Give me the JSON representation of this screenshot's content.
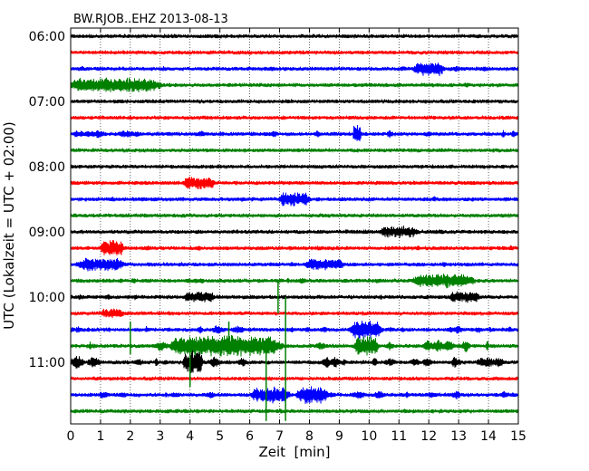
{
  "chart_data": {
    "type": "line",
    "title": "BW.RJOB..EHZ 2013-08-13",
    "xlabel": "Zeit  [min]",
    "ylabel": "UTC (Lokalzeit = UTC + 02:00)",
    "xlim": [
      0,
      15
    ],
    "x_ticks": [
      "0",
      "1",
      "2",
      "3",
      "4",
      "5",
      "6",
      "7",
      "8",
      "9",
      "10",
      "11",
      "12",
      "13",
      "14",
      "15"
    ],
    "y_ticks": [
      "06:00",
      "07:00",
      "08:00",
      "09:00",
      "10:00",
      "11:00"
    ],
    "grid": "vertical dotted",
    "trace_interval_minutes": 15,
    "start_time": "06:00",
    "trace_colors": [
      "#000000",
      "#ff0000",
      "#0000ff",
      "#008000"
    ],
    "traces": [
      {
        "start": "06:00",
        "color": "#000000",
        "max_amplitude": 2.0
      },
      {
        "start": "06:15",
        "color": "#ff0000",
        "max_amplitude": 1.8
      },
      {
        "start": "06:30",
        "color": "#0000ff",
        "max_amplitude": 3.5
      },
      {
        "start": "06:45",
        "color": "#008000",
        "max_amplitude": 3.0
      },
      {
        "start": "07:00",
        "color": "#000000",
        "max_amplitude": 2.5
      },
      {
        "start": "07:15",
        "color": "#ff0000",
        "max_amplitude": 2.0
      },
      {
        "start": "07:30",
        "color": "#0000ff",
        "max_amplitude": 5.0
      },
      {
        "start": "07:45",
        "color": "#008000",
        "max_amplitude": 1.5
      },
      {
        "start": "08:00",
        "color": "#000000",
        "max_amplitude": 2.5
      },
      {
        "start": "08:15",
        "color": "#ff0000",
        "max_amplitude": 3.0
      },
      {
        "start": "08:30",
        "color": "#0000ff",
        "max_amplitude": 3.5
      },
      {
        "start": "08:45",
        "color": "#008000",
        "max_amplitude": 2.0
      },
      {
        "start": "09:00",
        "color": "#000000",
        "max_amplitude": 3.0
      },
      {
        "start": "09:15",
        "color": "#ff0000",
        "max_amplitude": 3.5
      },
      {
        "start": "09:30",
        "color": "#0000ff",
        "max_amplitude": 3.0
      },
      {
        "start": "09:45",
        "color": "#008000",
        "max_amplitude": 4.0
      },
      {
        "start": "10:00",
        "color": "#000000",
        "max_amplitude": 3.5
      },
      {
        "start": "10:15",
        "color": "#ff0000",
        "max_amplitude": 2.5
      },
      {
        "start": "10:30",
        "color": "#0000ff",
        "max_amplitude": 5.0
      },
      {
        "start": "10:45",
        "color": "#008000",
        "max_amplitude": 8.0
      },
      {
        "start": "11:00",
        "color": "#000000",
        "max_amplitude": 8.0
      },
      {
        "start": "11:15",
        "color": "#ff0000",
        "max_amplitude": 2.0
      },
      {
        "start": "11:30",
        "color": "#0000ff",
        "max_amplitude": 5.0
      },
      {
        "start": "11:45",
        "color": "#008000",
        "max_amplitude": 3.0
      }
    ],
    "events": [
      {
        "trace": 20,
        "minute": 4.1,
        "amplitude": 1.0,
        "width": 0.25
      },
      {
        "trace": 19,
        "minute": 5.5,
        "amplitude": 0.9,
        "width": 1.2
      },
      {
        "trace": 19,
        "minute": 4.0,
        "amplitude": 0.8,
        "width": 0.5
      },
      {
        "trace": 19,
        "minute": 9.9,
        "amplitude": 0.9,
        "width": 0.3
      },
      {
        "trace": 18,
        "minute": 9.9,
        "amplitude": 0.8,
        "width": 0.4
      },
      {
        "trace": 22,
        "minute": 8.1,
        "amplitude": 0.8,
        "width": 0.4
      },
      {
        "trace": 22,
        "minute": 6.7,
        "amplitude": 0.7,
        "width": 0.5
      },
      {
        "trace": 6,
        "minute": 9.6,
        "amplitude": 0.9,
        "width": 0.1
      },
      {
        "trace": 2,
        "minute": 12.0,
        "amplitude": 0.6,
        "width": 0.4
      },
      {
        "trace": 3,
        "minute": 1.5,
        "amplitude": 0.6,
        "width": 1.2
      },
      {
        "trace": 9,
        "minute": 4.3,
        "amplitude": 0.6,
        "width": 0.4
      },
      {
        "trace": 10,
        "minute": 7.5,
        "amplitude": 0.6,
        "width": 0.4
      },
      {
        "trace": 12,
        "minute": 11.0,
        "amplitude": 0.5,
        "width": 0.5
      },
      {
        "trace": 13,
        "minute": 1.4,
        "amplitude": 0.7,
        "width": 0.3
      },
      {
        "trace": 14,
        "minute": 1.0,
        "amplitude": 0.6,
        "width": 0.6
      },
      {
        "trace": 14,
        "minute": 8.5,
        "amplitude": 0.5,
        "width": 0.5
      },
      {
        "trace": 15,
        "minute": 12.5,
        "amplitude": 0.6,
        "width": 0.8
      },
      {
        "trace": 16,
        "minute": 13.2,
        "amplitude": 0.5,
        "width": 0.4
      },
      {
        "trace": 16,
        "minute": 4.3,
        "amplitude": 0.5,
        "width": 0.4
      },
      {
        "trace": 17,
        "minute": 1.4,
        "amplitude": 0.4,
        "width": 0.3
      }
    ],
    "spikes": [
      {
        "minute": 6.55,
        "from_trace": 19,
        "to_trace": 23.6,
        "color": "#008000"
      },
      {
        "minute": 7.2,
        "from_trace": 16,
        "to_trace": 23.6,
        "color": "#008000"
      },
      {
        "minute": 4.0,
        "from_trace": 19,
        "to_trace": 21.5,
        "color": "#008000"
      },
      {
        "minute": 2.0,
        "from_trace": 17.5,
        "to_trace": 19.5,
        "color": "#008000"
      },
      {
        "minute": 6.95,
        "from_trace": 15,
        "to_trace": 17,
        "color": "#008000"
      },
      {
        "minute": 5.3,
        "from_trace": 17.5,
        "to_trace": 19.5,
        "color": "#008000"
      }
    ]
  }
}
